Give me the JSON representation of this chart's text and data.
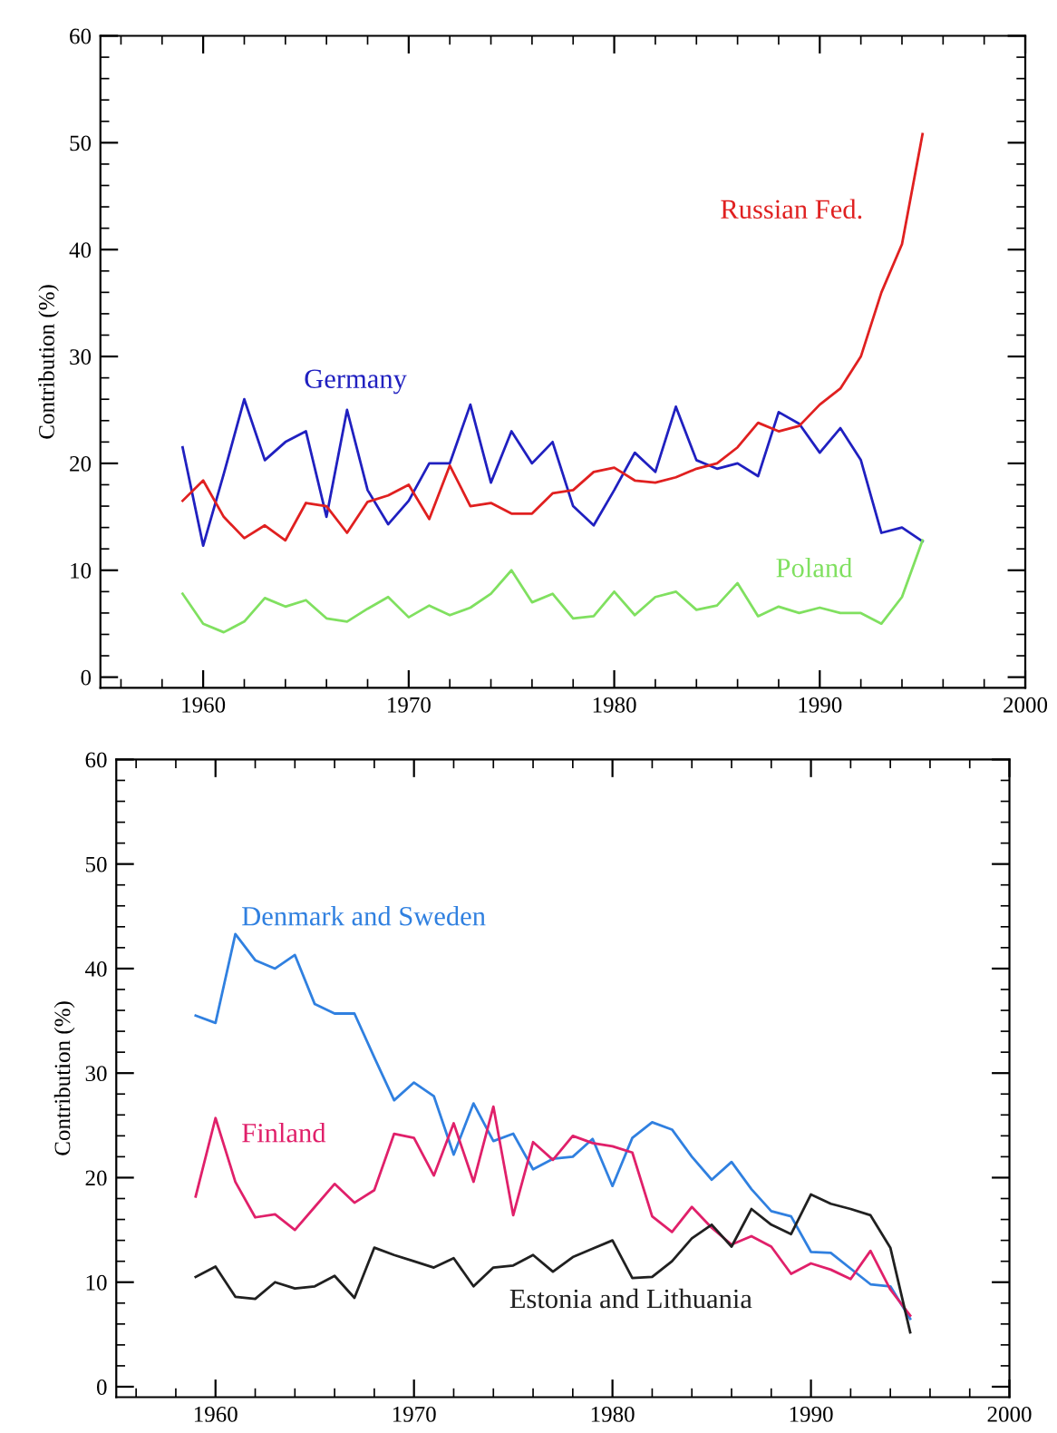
{
  "chart_data": [
    {
      "type": "line",
      "ylabel": "Contribution (%)",
      "xlim": [
        1955,
        2000
      ],
      "ylim": [
        -1,
        60
      ],
      "xticks": [
        1960,
        1970,
        1980,
        1990,
        2000
      ],
      "yticks": [
        0,
        10,
        20,
        30,
        40,
        50,
        60
      ],
      "grid": false,
      "legend": false,
      "x": [
        1959,
        1960,
        1961,
        1962,
        1963,
        1964,
        1965,
        1966,
        1967,
        1968,
        1969,
        1970,
        1971,
        1972,
        1973,
        1974,
        1975,
        1976,
        1977,
        1978,
        1979,
        1980,
        1981,
        1982,
        1983,
        1984,
        1985,
        1986,
        1987,
        1988,
        1989,
        1990,
        1991,
        1992,
        1993,
        1994,
        1995
      ],
      "series": [
        {
          "name": "Germany",
          "color": "#2020c0",
          "values": [
            21.5,
            12.3,
            19,
            26,
            20.3,
            22,
            23,
            15,
            25,
            17.5,
            14.3,
            16.5,
            20,
            20,
            25.5,
            18.2,
            23,
            20,
            22,
            16,
            14.2,
            17.5,
            21,
            19.2,
            25.3,
            20.3,
            19.5,
            20,
            18.8,
            24.8,
            23.7,
            21,
            23.3,
            20.3,
            13.5,
            14,
            12.7
          ]
        },
        {
          "name": "Russian Fed.",
          "color": "#e02020",
          "values": [
            16.5,
            18.4,
            15,
            13,
            14.2,
            12.8,
            16.3,
            16,
            13.5,
            16.4,
            17,
            18,
            14.8,
            19.8,
            16,
            16.3,
            15.3,
            15.3,
            17.2,
            17.5,
            19.2,
            19.6,
            18.4,
            18.2,
            18.7,
            19.5,
            20,
            21.5,
            23.8,
            23,
            23.5,
            25.5,
            27,
            30,
            36,
            40.5,
            50.8
          ]
        },
        {
          "name": "Poland",
          "color": "#80e060",
          "values": [
            7.8,
            5,
            4.2,
            5.2,
            7.4,
            6.6,
            7.2,
            5.5,
            5.2,
            6.4,
            7.5,
            5.6,
            6.7,
            5.8,
            6.5,
            7.8,
            10,
            7,
            7.8,
            5.5,
            5.7,
            8,
            5.8,
            7.5,
            8,
            6.3,
            6.7,
            8.8,
            5.7,
            6.6,
            6,
            6.5,
            6,
            6,
            5,
            7.5,
            12.8
          ]
        }
      ]
    },
    {
      "type": "line",
      "ylabel": "Contribution (%)",
      "xlim": [
        1955,
        2000
      ],
      "ylim": [
        -1,
        60
      ],
      "xticks": [
        1960,
        1970,
        1980,
        1990,
        2000
      ],
      "yticks": [
        0,
        10,
        20,
        30,
        40,
        50,
        60
      ],
      "grid": false,
      "legend": false,
      "x": [
        1959,
        1960,
        1961,
        1962,
        1963,
        1964,
        1965,
        1966,
        1967,
        1968,
        1969,
        1970,
        1971,
        1972,
        1973,
        1974,
        1975,
        1976,
        1977,
        1978,
        1979,
        1980,
        1981,
        1982,
        1983,
        1984,
        1985,
        1986,
        1987,
        1988,
        1989,
        1990,
        1991,
        1992,
        1993,
        1994,
        1995
      ],
      "series": [
        {
          "name": "Denmark and Sweden",
          "color": "#3080e0",
          "values": [
            35.5,
            34.8,
            43.3,
            40.8,
            40,
            41.3,
            36.6,
            35.7,
            35.7,
            31.5,
            27.4,
            29.1,
            27.8,
            22.2,
            27.1,
            23.5,
            24.2,
            20.8,
            21.8,
            22,
            23.7,
            19.2,
            23.8,
            25.3,
            24.6,
            22,
            19.8,
            21.5,
            18.9,
            16.8,
            16.3,
            12.9,
            12.8,
            11.3,
            9.8,
            9.6,
            6.5
          ]
        },
        {
          "name": "Finland",
          "color": "#e0206a",
          "values": [
            18.2,
            25.7,
            19.6,
            16.2,
            16.5,
            15,
            17.2,
            19.4,
            17.6,
            18.8,
            24.2,
            23.8,
            20.2,
            25.2,
            19.6,
            26.8,
            16.4,
            23.4,
            21.7,
            24,
            23.3,
            23,
            22.4,
            16.3,
            14.8,
            17.2,
            15.2,
            13.6,
            14.4,
            13.4,
            10.8,
            11.8,
            11.2,
            10.3,
            13,
            9.3,
            6.8
          ]
        },
        {
          "name": "Estonia and Lithuania",
          "color": "#202020",
          "values": [
            10.5,
            11.5,
            8.6,
            8.4,
            10,
            9.4,
            9.6,
            10.6,
            8.5,
            13.3,
            12.6,
            12,
            11.4,
            12.3,
            9.6,
            11.4,
            11.6,
            12.6,
            11,
            12.4,
            13.2,
            14,
            10.4,
            10.5,
            12,
            14.2,
            15.5,
            13.4,
            17,
            15.5,
            14.6,
            18.4,
            17.5,
            17,
            16.4,
            13.3,
            5.2
          ]
        }
      ]
    }
  ]
}
